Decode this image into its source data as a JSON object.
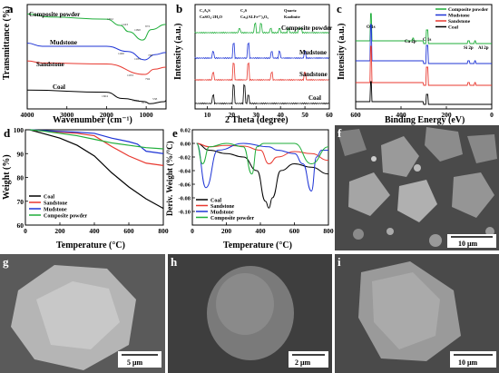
{
  "colors": {
    "black": "#000000",
    "red": "#e8382f",
    "blue": "#1f35d6",
    "green": "#1fae3a"
  },
  "panels": {
    "a": {
      "letter": "a",
      "xlabel": "Wavenumber (cm⁻¹)",
      "ylabel": "Transmittance (%)",
      "labels": [
        "Composite powder",
        "Mudstone",
        "Sandstone",
        "Coal"
      ],
      "peaks": {
        "green": [
          "3431",
          "1652",
          "1443",
          "1090",
          "872"
        ],
        "blue": [
          "3619",
          "1460",
          "1035",
          "788"
        ],
        "red": [
          "3617",
          "1033",
          "794"
        ],
        "black": [
          "1604",
          "1033",
          "913",
          "538"
        ]
      }
    },
    "b": {
      "letter": "b",
      "xlabel": "2 Theta (degree)",
      "ylabel": "Intensity (a.u.)",
      "legend": [
        "C₃A₂S",
        "C₂S",
        "Quartz",
        "CaSO₄·2H₂O",
        "Ca₂(ALFe³⁺)₂O₅",
        "Kaolinite"
      ],
      "labels": [
        "Composite powder",
        "Mudstone",
        "Sandstone",
        "Coal"
      ]
    },
    "c": {
      "letter": "c",
      "xlabel": "Binding Energy (eV)",
      "ylabel": "Intensity (a.u.)",
      "legend": [
        "Composite powder",
        "Mudstone",
        "Sandstone",
        "Coal"
      ],
      "peaks": [
        "O 1s",
        "Ca 2p",
        "C 1s",
        "Si 2p",
        "Al 2p"
      ]
    },
    "d": {
      "letter": "d",
      "xlabel": "Temperature (°C)",
      "ylabel": "Weight (%)",
      "legend": [
        "Coal",
        "Sandstone",
        "Mudstone",
        "Composite powder"
      ]
    },
    "e": {
      "letter": "e",
      "xlabel": "Temperature (°C)",
      "ylabel": "Deriv. Weight (%/°C)",
      "legend": [
        "Coal",
        "Sandstone",
        "Mudstone",
        "Composite powder"
      ]
    },
    "f": {
      "letter": "f",
      "scale": "10 μm"
    },
    "g": {
      "letter": "g",
      "scale": "5 μm"
    },
    "h": {
      "letter": "h",
      "scale": "2 μm"
    },
    "i": {
      "letter": "i",
      "scale": "10 μm"
    }
  },
  "chart_data": [
    {
      "type": "line",
      "panel": "a",
      "xlabel": "Wavenumber (cm⁻¹)",
      "ylabel": "Transmittance (%)",
      "xlim": [
        4000,
        500
      ],
      "x_ticks": [
        4000,
        3000,
        2000,
        1000
      ],
      "series": [
        {
          "name": "Composite powder",
          "color": "#1fae3a",
          "x": [
            4000,
            3431,
            2000,
            1652,
            1443,
            1090,
            872,
            500
          ],
          "y": [
            0.91,
            0.88,
            0.86,
            0.8,
            0.74,
            0.66,
            0.76,
            0.81
          ]
        },
        {
          "name": "Mudstone",
          "color": "#1f35d6",
          "x": [
            4000,
            3619,
            2000,
            1460,
            1035,
            788,
            500
          ],
          "y": [
            0.63,
            0.6,
            0.6,
            0.55,
            0.47,
            0.52,
            0.54
          ]
        },
        {
          "name": "Sandstone",
          "color": "#e8382f",
          "x": [
            4000,
            3617,
            2000,
            1033,
            794,
            500
          ],
          "y": [
            0.46,
            0.44,
            0.43,
            0.33,
            0.38,
            0.4
          ]
        },
        {
          "name": "Coal",
          "color": "#000000",
          "x": [
            4000,
            2000,
            1604,
            1033,
            913,
            538,
            500
          ],
          "y": [
            0.18,
            0.16,
            0.1,
            0.07,
            0.05,
            0.07,
            0.08
          ]
        }
      ]
    },
    {
      "type": "line",
      "panel": "b",
      "xlabel": "2 Theta (degree)",
      "ylabel": "Intensity (a.u.)",
      "xlim": [
        5,
        60
      ],
      "x_ticks": [
        10,
        20,
        30,
        40,
        50,
        60
      ],
      "series": [
        {
          "name": "Composite powder",
          "color": "#1fae3a",
          "peaks_x": [
            23.0,
            29.4,
            31.9,
            36.0,
            39.4,
            43.2,
            47.5,
            48.5
          ]
        },
        {
          "name": "Mudstone",
          "color": "#1f35d6",
          "peaks_x": [
            12.4,
            20.9,
            26.6,
            36.5,
            39.5,
            50.1
          ]
        },
        {
          "name": "Sandstone",
          "color": "#e8382f",
          "peaks_x": [
            12.4,
            20.9,
            26.6,
            36.5,
            50.1
          ]
        },
        {
          "name": "Coal",
          "color": "#000000",
          "peaks_x": [
            12.4,
            20.9,
            25.0,
            26.6
          ]
        }
      ]
    },
    {
      "type": "line",
      "panel": "c",
      "xlabel": "Binding Energy (eV)",
      "ylabel": "Intensity (a.u.)",
      "xlim": [
        600,
        0
      ],
      "x_ticks": [
        600,
        400,
        200,
        0
      ],
      "series": [
        {
          "name": "Composite powder",
          "color": "#1fae3a",
          "peaks_x": [
            532,
            347,
            285,
            102,
            74
          ]
        },
        {
          "name": "Mudstone",
          "color": "#1f35d6",
          "peaks_x": [
            532,
            285,
            102,
            74
          ]
        },
        {
          "name": "Sandstone",
          "color": "#e8382f",
          "peaks_x": [
            532,
            285,
            102,
            74
          ]
        },
        {
          "name": "Coal",
          "color": "#000000",
          "peaks_x": [
            532,
            285
          ]
        }
      ]
    },
    {
      "type": "line",
      "panel": "d",
      "xlabel": "Temperature (°C)",
      "ylabel": "Weight (%)",
      "xlim": [
        0,
        800
      ],
      "ylim": [
        60,
        100
      ],
      "x_ticks": [
        0,
        200,
        400,
        600,
        800
      ],
      "y_ticks": [
        60,
        70,
        80,
        90,
        100
      ],
      "series": [
        {
          "name": "Coal",
          "color": "#000000",
          "x": [
            25,
            100,
            200,
            300,
            400,
            500,
            600,
            700,
            800
          ],
          "y": [
            100,
            98.5,
            96.5,
            93.5,
            89,
            82,
            76,
            71,
            67
          ]
        },
        {
          "name": "Sandstone",
          "color": "#e8382f",
          "x": [
            25,
            100,
            200,
            300,
            400,
            500,
            600,
            700,
            800
          ],
          "y": [
            100,
            99.5,
            99,
            98.5,
            97.5,
            93,
            89,
            86,
            85
          ]
        },
        {
          "name": "Mudstone",
          "color": "#1f35d6",
          "x": [
            25,
            100,
            200,
            300,
            400,
            500,
            600,
            650,
            700,
            800
          ],
          "y": [
            100,
            99.7,
            99.3,
            99,
            98.5,
            96.5,
            95,
            94,
            91,
            90
          ]
        },
        {
          "name": "Composite powder",
          "color": "#1fae3a",
          "x": [
            25,
            100,
            200,
            300,
            400,
            500,
            600,
            700,
            800
          ],
          "y": [
            100,
            99.5,
            98.5,
            97.5,
            96,
            94.5,
            93.5,
            92.5,
            92
          ]
        }
      ]
    },
    {
      "type": "line",
      "panel": "e",
      "xlabel": "Temperature (°C)",
      "ylabel": "Deriv. Weight (%/°C)",
      "xlim": [
        0,
        800
      ],
      "ylim": [
        -0.12,
        0.02
      ],
      "x_ticks": [
        0,
        200,
        400,
        600,
        800
      ],
      "y_ticks": [
        0.02,
        0.0,
        -0.02,
        -0.04,
        -0.06,
        -0.08,
        -0.1
      ],
      "series": [
        {
          "name": "Coal",
          "color": "#000000",
          "x": [
            25,
            100,
            200,
            300,
            380,
            430,
            450,
            470,
            520,
            600,
            700,
            800
          ],
          "y": [
            0.0,
            -0.01,
            -0.015,
            -0.02,
            -0.04,
            -0.085,
            -0.095,
            -0.08,
            -0.04,
            -0.03,
            -0.035,
            -0.045
          ]
        },
        {
          "name": "Sandstone",
          "color": "#e8382f",
          "x": [
            25,
            100,
            200,
            300,
            400,
            450,
            500,
            600,
            700,
            800
          ],
          "y": [
            0.0,
            -0.005,
            -0.003,
            -0.004,
            -0.01,
            -0.03,
            -0.02,
            -0.012,
            -0.015,
            -0.025
          ]
        },
        {
          "name": "Mudstone",
          "color": "#1f35d6",
          "x": [
            25,
            80,
            150,
            300,
            450,
            500,
            600,
            650,
            700,
            730,
            760,
            800
          ],
          "y": [
            0.0,
            -0.065,
            -0.01,
            0.0,
            -0.005,
            -0.01,
            -0.015,
            -0.03,
            -0.07,
            -0.02,
            -0.01,
            -0.01
          ]
        },
        {
          "name": "Composite powder",
          "color": "#1fae3a",
          "x": [
            25,
            60,
            100,
            200,
            300,
            350,
            380,
            420,
            600,
            700,
            800
          ],
          "y": [
            0.0,
            -0.03,
            -0.005,
            0.0,
            -0.005,
            -0.045,
            -0.005,
            0.0,
            0.0,
            -0.03,
            -0.005
          ]
        }
      ]
    }
  ]
}
